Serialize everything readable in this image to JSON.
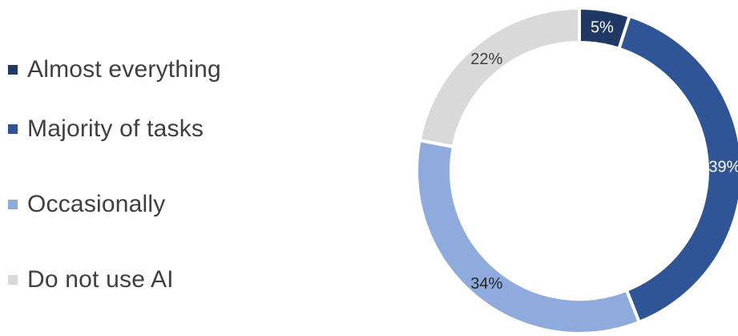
{
  "chart_data": {
    "type": "pie",
    "variant": "donut",
    "legend_position": "left",
    "categories": [
      "Almost everything",
      "Majority of tasks",
      "Occasionally",
      "Do not use AI"
    ],
    "values": [
      5,
      39,
      34,
      22
    ],
    "labels": [
      "5%",
      "39%",
      "34%",
      "22%"
    ],
    "colors": [
      "#1f3864",
      "#2f5597",
      "#8faadc",
      "#d9d9d9"
    ],
    "label_colors": [
      "#ffffff",
      "#ffffff",
      "#262626",
      "#404040"
    ]
  }
}
